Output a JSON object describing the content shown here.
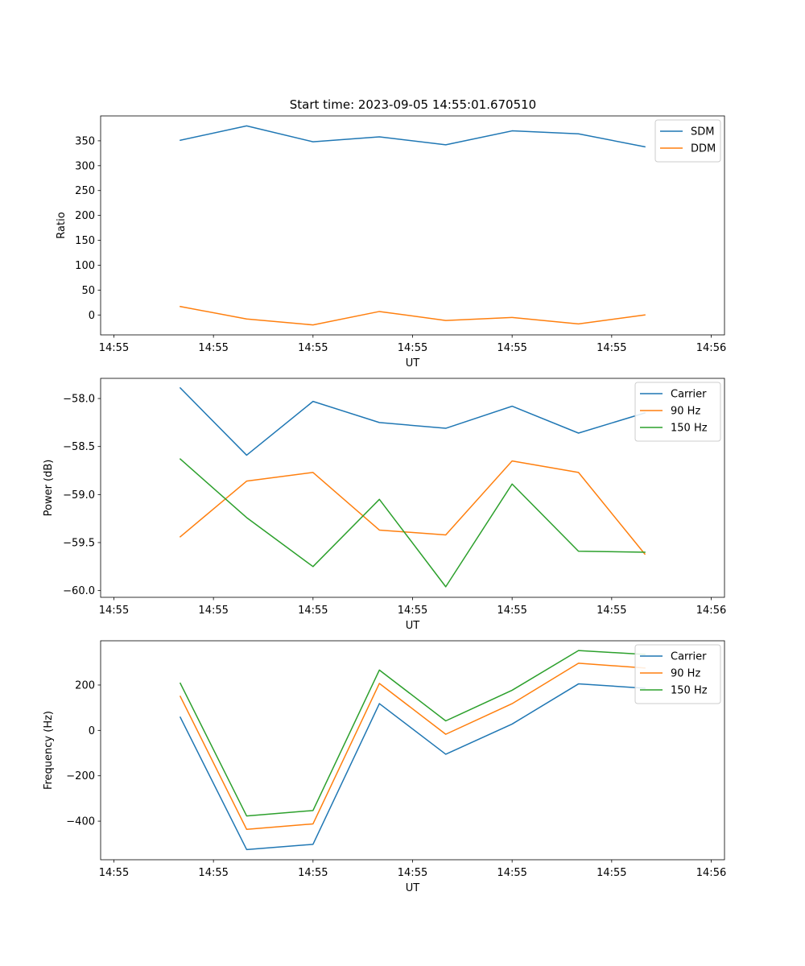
{
  "title": "Start time: 2023-09-05 14:55:01.670510",
  "chart_data": [
    {
      "type": "line",
      "title": "Start time: 2023-09-05 14:55:01.670510",
      "xlabel": "UT",
      "ylabel": "Ratio",
      "x": [
        1,
        2,
        3,
        4,
        5,
        6,
        7,
        8
      ],
      "xlim": [
        -0.2,
        9.2
      ],
      "x_ticks": [
        0,
        1.5,
        3,
        4.5,
        6,
        7.5,
        9
      ],
      "x_tick_labels": [
        "14:55",
        "14:55",
        "14:55",
        "14:55",
        "14:55",
        "14:55",
        "14:56"
      ],
      "ylim": [
        -40,
        400
      ],
      "y_ticks": [
        0,
        50,
        100,
        150,
        200,
        250,
        300,
        350
      ],
      "y_tick_labels": [
        "0",
        "50",
        "100",
        "150",
        "200",
        "250",
        "300",
        "350"
      ],
      "legend": "top-right",
      "series": [
        {
          "name": "SDM",
          "color": "#1f77b4",
          "values": [
            351,
            380,
            348,
            358,
            342,
            370,
            364,
            338
          ]
        },
        {
          "name": "DDM",
          "color": "#ff7f0e",
          "values": [
            17,
            -8,
            -20,
            7,
            -11,
            -5,
            -18,
            0
          ]
        }
      ]
    },
    {
      "type": "line",
      "title": "",
      "xlabel": "UT",
      "ylabel": "Power (dB)",
      "x": [
        1,
        2,
        3,
        4,
        5,
        6,
        7,
        8
      ],
      "xlim": [
        -0.2,
        9.2
      ],
      "x_ticks": [
        0,
        1.5,
        3,
        4.5,
        6,
        7.5,
        9
      ],
      "x_tick_labels": [
        "14:55",
        "14:55",
        "14:55",
        "14:55",
        "14:55",
        "14:55",
        "14:56"
      ],
      "ylim": [
        -60.07,
        -57.79
      ],
      "y_ticks": [
        -60.0,
        -59.5,
        -59.0,
        -58.5,
        -58.0
      ],
      "y_tick_labels": [
        "−60.0",
        "−59.5",
        "−59.0",
        "−58.5",
        "−58.0"
      ],
      "legend": "top-right",
      "series": [
        {
          "name": "Carrier",
          "color": "#1f77b4",
          "values": [
            -57.89,
            -58.59,
            -58.03,
            -58.25,
            -58.31,
            -58.08,
            -58.36,
            -58.15
          ]
        },
        {
          "name": "90 Hz",
          "color": "#ff7f0e",
          "values": [
            -59.44,
            -58.86,
            -58.77,
            -59.37,
            -59.42,
            -58.65,
            -58.77,
            -59.62
          ]
        },
        {
          "name": "150 Hz",
          "color": "#2ca02c",
          "values": [
            -58.63,
            -59.24,
            -59.75,
            -59.05,
            -59.96,
            -58.89,
            -59.59,
            -59.6
          ]
        }
      ]
    },
    {
      "type": "line",
      "title": "",
      "xlabel": "UT",
      "ylabel": "Frequency (Hz)",
      "x": [
        1,
        2,
        3,
        4,
        5,
        6,
        7,
        8
      ],
      "xlim": [
        -0.2,
        9.2
      ],
      "x_ticks": [
        0,
        1.5,
        3,
        4.5,
        6,
        7.5,
        9
      ],
      "x_tick_labels": [
        "14:55",
        "14:55",
        "14:55",
        "14:55",
        "14:55",
        "14:55",
        "14:56"
      ],
      "ylim": [
        -570,
        395
      ],
      "y_ticks": [
        -400,
        -200,
        0,
        200
      ],
      "y_tick_labels": [
        "−400",
        "−200",
        "0",
        "200"
      ],
      "legend": "top-right",
      "series": [
        {
          "name": "Carrier",
          "color": "#1f77b4",
          "values": [
            58,
            -525,
            -502,
            118,
            -105,
            28,
            205,
            186
          ]
        },
        {
          "name": "90 Hz",
          "color": "#ff7f0e",
          "values": [
            150,
            -436,
            -412,
            207,
            -17,
            118,
            296,
            275
          ]
        },
        {
          "name": "150 Hz",
          "color": "#2ca02c",
          "values": [
            208,
            -377,
            -353,
            266,
            42,
            177,
            352,
            335
          ]
        }
      ]
    }
  ]
}
